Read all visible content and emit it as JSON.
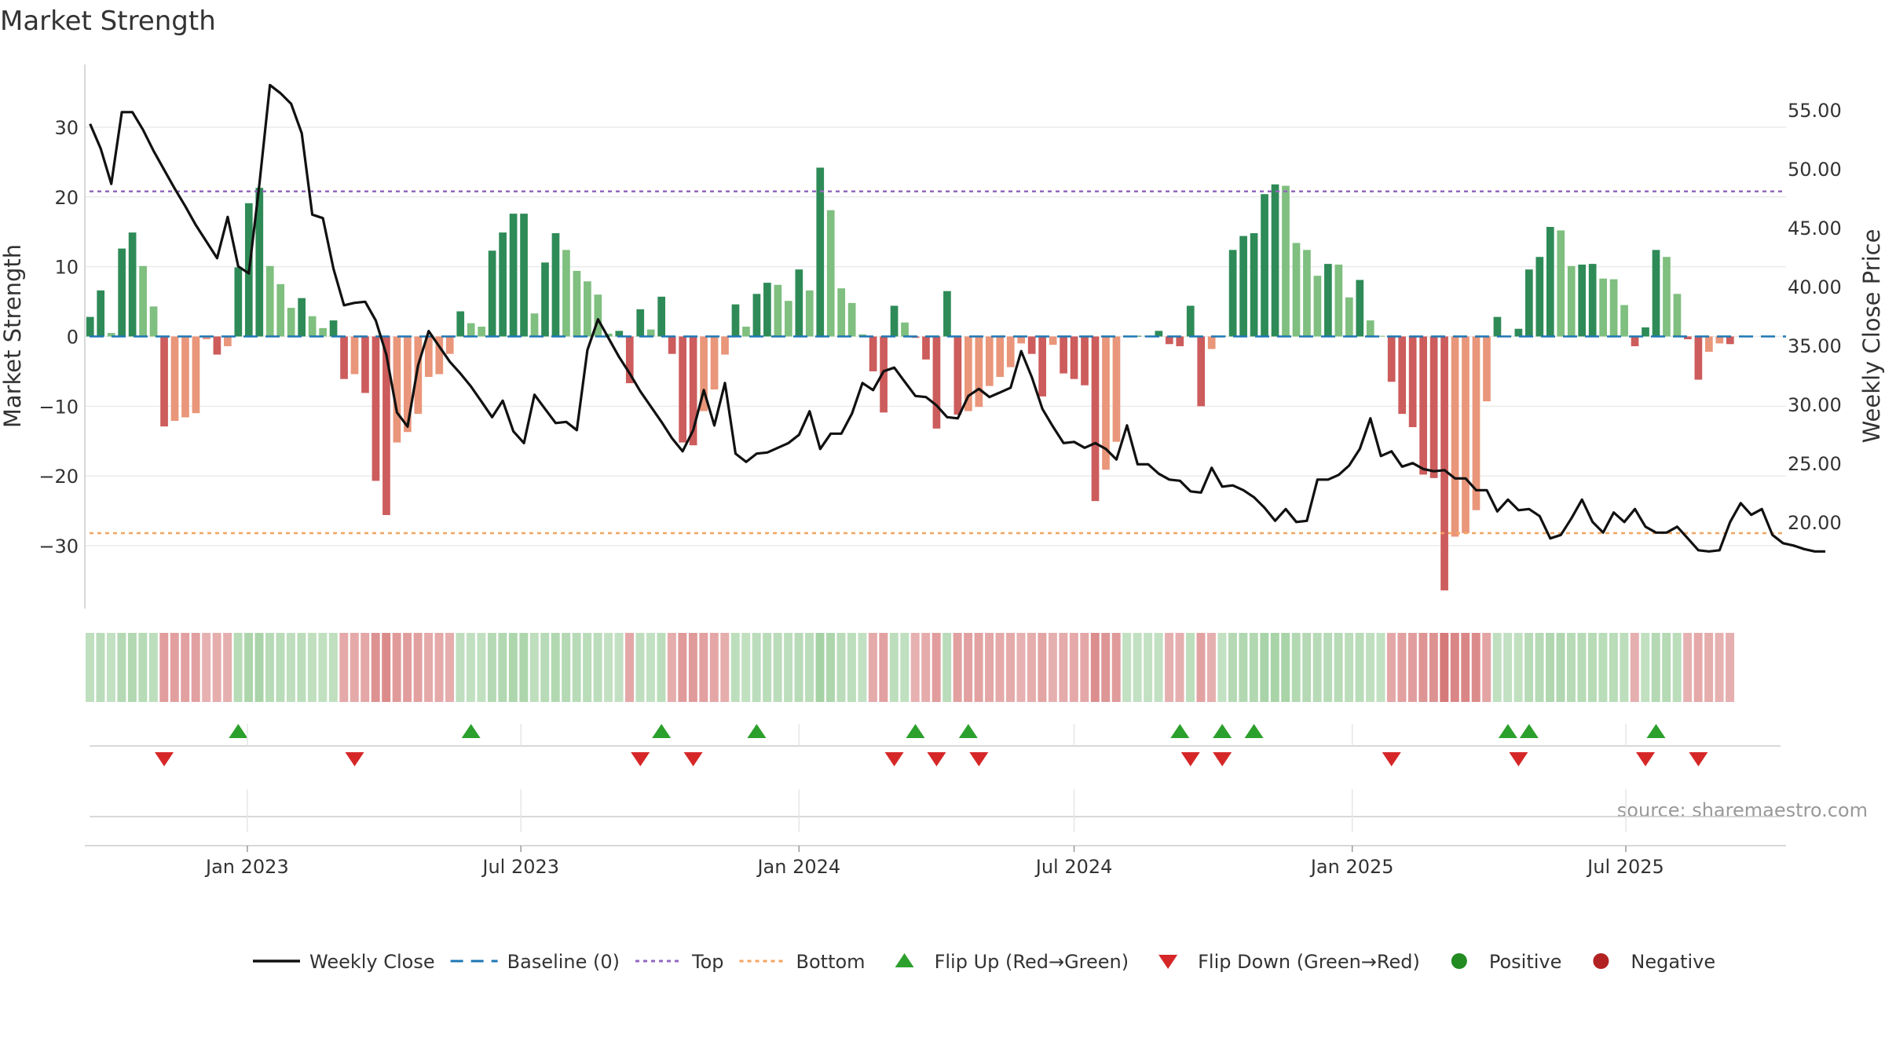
{
  "chart_data": {
    "type": "bar",
    "title": "Market Strength",
    "ylabel_left": "Market Strength",
    "ylabel_right": "Weekly Close Price",
    "source": "source: sharemaestro.com",
    "ylim_left": [
      -39,
      39
    ],
    "ylim_right": [
      12.65,
      58.85
    ],
    "yticks_left": [
      "30",
      "20",
      "10",
      "0",
      "−10",
      "−20",
      "−30"
    ],
    "yticks_right": [
      "55.00",
      "50.00",
      "45.00",
      "40.00",
      "35.00",
      "30.00",
      "25.00",
      "20.00"
    ],
    "x_start": "2022-09-19",
    "x_step_days": 7,
    "x_end": "2025-10-15",
    "xticks": [
      {
        "date": "2023-01-01",
        "label": "Jan 2023"
      },
      {
        "date": "2023-07-01",
        "label": "Jul 2023"
      },
      {
        "date": "2024-01-01",
        "label": "Jan 2024"
      },
      {
        "date": "2024-07-01",
        "label": "Jul 2024"
      },
      {
        "date": "2025-01-01",
        "label": "Jan 2025"
      },
      {
        "date": "2025-07-01",
        "label": "Jul 2025"
      }
    ],
    "top_line": 20.8,
    "bottom_line": -28.2,
    "strength": [
      2.8,
      6.6,
      0.5,
      12.6,
      14.9,
      10.1,
      4.3,
      -12.9,
      -12.1,
      -11.6,
      -11.0,
      -0.4,
      -2.6,
      -1.4,
      9.9,
      19.1,
      21.3,
      10.1,
      7.5,
      4.1,
      5.5,
      2.9,
      1.2,
      2.3,
      -6.1,
      -5.4,
      -8.1,
      -20.7,
      -25.6,
      -15.2,
      -13.7,
      -11.1,
      -5.8,
      -5.4,
      -2.5,
      3.6,
      1.9,
      1.4,
      12.3,
      14.9,
      17.6,
      17.6,
      3.3,
      10.6,
      14.8,
      12.4,
      9.4,
      7.9,
      6.0,
      0.4,
      0.8,
      -6.7,
      3.9,
      1.0,
      5.7,
      -2.5,
      -15.2,
      -15.6,
      -10.7,
      -7.6,
      -2.6,
      4.6,
      1.4,
      6.1,
      7.7,
      7.4,
      5.1,
      9.6,
      6.6,
      24.2,
      18.1,
      6.9,
      4.8,
      0.3,
      -5.0,
      -10.9,
      4.4,
      2.0,
      -0.2,
      -3.3,
      -13.2,
      6.5,
      -11.2,
      -10.7,
      -10.1,
      -7.1,
      -5.8,
      -4.4,
      -1.0,
      -2.5,
      -8.6,
      -1.2,
      -5.3,
      -6.1,
      -7.0,
      -23.6,
      -19.1,
      -15.1,
      0.1,
      0.1,
      0.1,
      0.8,
      -1.1,
      -1.4,
      4.4,
      -10.0,
      -1.8,
      0.1,
      12.4,
      14.4,
      14.8,
      20.4,
      21.8,
      21.6,
      13.4,
      12.4,
      8.7,
      10.4,
      10.3,
      5.6,
      8.1,
      2.3,
      0.1,
      -6.5,
      -11.1,
      -13.0,
      -19.8,
      -20.3,
      -36.4,
      -28.7,
      -28.2,
      -24.9,
      -9.3,
      2.8,
      0.1,
      1.1,
      9.6,
      11.4,
      15.7,
      15.2,
      10.1,
      10.3,
      10.4,
      8.3,
      8.2,
      4.5,
      -1.4,
      1.3,
      12.4,
      11.4,
      6.1,
      -0.4,
      -6.2,
      -2.2,
      -1.0,
      -1.1
    ],
    "close": [
      53.8,
      51.7,
      48.7,
      54.8,
      54.8,
      53.3,
      51.5,
      49.9,
      48.3,
      46.8,
      45.2,
      43.8,
      42.4,
      45.9,
      41.7,
      41.1,
      48.7,
      57.1,
      56.4,
      55.5,
      53.0,
      46.1,
      45.8,
      41.5,
      38.4,
      38.6,
      38.7,
      37.1,
      34.2,
      29.3,
      28.1,
      33.3,
      36.2,
      34.9,
      33.6,
      32.6,
      31.5,
      30.2,
      28.9,
      30.3,
      27.7,
      26.7,
      30.8,
      29.6,
      28.4,
      28.5,
      27.8,
      34.6,
      37.2,
      35.6,
      34.0,
      32.6,
      31.1,
      29.8,
      28.5,
      27.1,
      26.0,
      27.8,
      31.2,
      28.2,
      31.8,
      25.8,
      25.1,
      25.8,
      25.9,
      26.3,
      26.7,
      27.4,
      29.4,
      26.2,
      27.5,
      27.5,
      29.2,
      31.8,
      31.2,
      32.8,
      33.1,
      31.9,
      30.7,
      30.6,
      29.9,
      28.9,
      28.8,
      30.7,
      31.3,
      30.6,
      31.0,
      31.4,
      34.5,
      32.3,
      29.6,
      28.1,
      26.7,
      26.8,
      26.3,
      26.7,
      26.2,
      25.3,
      28.2,
      24.9,
      24.9,
      24.1,
      23.6,
      23.5,
      22.6,
      22.5,
      24.6,
      23.0,
      23.1,
      22.7,
      22.1,
      21.2,
      20.1,
      21.1,
      20.0,
      20.1,
      23.6,
      23.6,
      24.0,
      24.8,
      26.2,
      28.8,
      25.6,
      26.0,
      24.7,
      25.0,
      24.5,
      24.3,
      24.4,
      23.7,
      23.7,
      22.7,
      22.7,
      20.9,
      21.9,
      21.0,
      21.1,
      20.5,
      18.6,
      18.9,
      20.3,
      21.9,
      20.0,
      19.1,
      20.8,
      20.0,
      21.1,
      19.6,
      19.1,
      19.1,
      19.6,
      18.6,
      17.6,
      17.5,
      17.6,
      20.0,
      21.6,
      20.6,
      21.1,
      18.9,
      18.2,
      18.0,
      17.7,
      17.5,
      17.5
    ],
    "flip_up_weeks": [
      14,
      36,
      54,
      63,
      78,
      83,
      103,
      107,
      110,
      134,
      136,
      148
    ],
    "flip_down_weeks": [
      7,
      25,
      52,
      57,
      76,
      80,
      84,
      104,
      107,
      123,
      135,
      147,
      152
    ],
    "colors": {
      "strong_pos": "#2e8b57",
      "weak_pos": "#7fbf7f",
      "strong_neg": "#cd5c5c",
      "weak_neg": "#e9967a",
      "close_line": "#111111",
      "baseline": "#1f77b4",
      "top": "#9467bd",
      "bottom": "#f4a460",
      "flip_up": "#2ca02c",
      "flip_down": "#d62728",
      "positive": "#228b22",
      "negative": "#b22222"
    },
    "legend": [
      {
        "kind": "line",
        "label": "Weekly Close",
        "color": "#111111"
      },
      {
        "kind": "dash",
        "label": "Baseline (0)",
        "color": "#1f77b4"
      },
      {
        "kind": "dot",
        "label": "Top",
        "color": "#9467bd"
      },
      {
        "kind": "dot",
        "label": "Bottom",
        "color": "#f4a460"
      },
      {
        "kind": "up",
        "label": "Flip Up (Red→Green)",
        "color": "#2ca02c"
      },
      {
        "kind": "down",
        "label": "Flip Down (Green→Red)",
        "color": "#d62728"
      },
      {
        "kind": "circle",
        "label": "Positive",
        "color": "#228b22"
      },
      {
        "kind": "circle",
        "label": "Negative",
        "color": "#b22222"
      }
    ]
  }
}
